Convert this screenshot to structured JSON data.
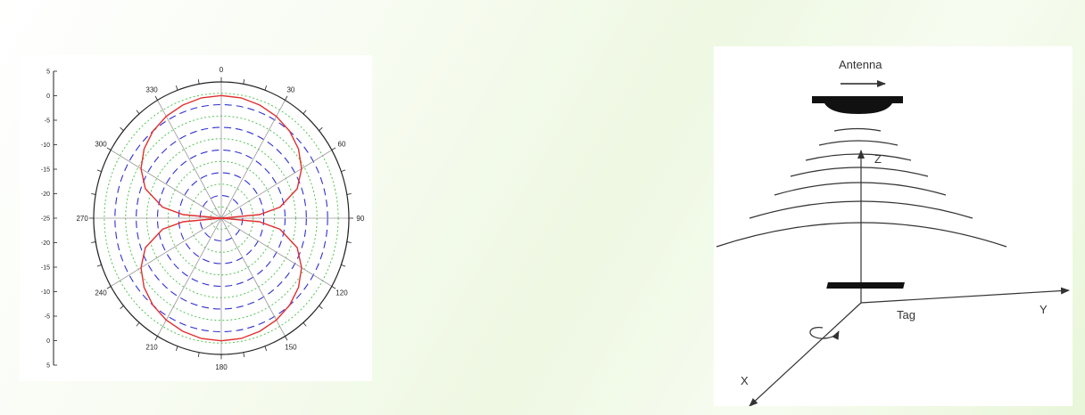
{
  "chart_data": {
    "type": "polar",
    "r_ticks_upper": [
      "5",
      "0",
      "-5",
      "-10",
      "-15",
      "-20",
      "-25"
    ],
    "r_ticks_lower": [
      "-25",
      "-20",
      "-15",
      "-10",
      "-5",
      "0",
      "5"
    ],
    "rlim": [
      -25,
      5
    ],
    "theta_labels": [
      "0",
      "30",
      "60",
      "90",
      "120",
      "150",
      "180",
      "210",
      "240",
      "270",
      "300",
      "330"
    ],
    "grid": true,
    "series": [
      {
        "color": "#e03030",
        "theta_deg": [
          0,
          10,
          20,
          30,
          40,
          50,
          60,
          70,
          80,
          85,
          90,
          95,
          100,
          110,
          120,
          130,
          140,
          150,
          160,
          170,
          180,
          190,
          200,
          210,
          220,
          230,
          240,
          250,
          260,
          265,
          270,
          275,
          280,
          290,
          300,
          310,
          320,
          330,
          340,
          350,
          360
        ],
        "r_db": [
          2,
          1.9,
          1.5,
          0.9,
          0,
          -1.3,
          -3.2,
          -6,
          -11,
          -16,
          -25,
          -16,
          -11,
          -6,
          -3.2,
          -1.3,
          0,
          0.9,
          1.5,
          1.9,
          2,
          1.9,
          1.5,
          0.9,
          0,
          -1.3,
          -3.2,
          -6,
          -11,
          -16,
          -25,
          -16,
          -11,
          -6,
          -3.2,
          -1.3,
          0,
          0.9,
          1.5,
          1.9,
          2
        ]
      }
    ]
  },
  "diagram": {
    "antenna_label": "Antenna",
    "z_label": "Z",
    "y_label": "Y",
    "x_label": "X",
    "tag_label": "Tag"
  }
}
